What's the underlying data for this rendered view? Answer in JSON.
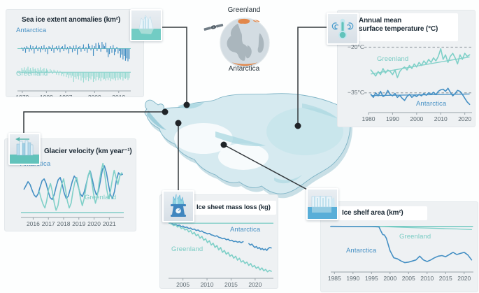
{
  "figure": {
    "globe": {
      "top_label": "Greenland",
      "bottom_label": "Antarctica"
    },
    "icons": {
      "sea_ice": "iceberg-icon",
      "temperature": "thermometer-wind-icon",
      "glacier_velocity": "glacier-flow-arrow-icon",
      "ice_sheet_mass": "ice-on-scale-icon",
      "ice_shelf": "ice-shelf-icon",
      "globe": "globe-icon",
      "satellite": "satellite-icon"
    },
    "colors": {
      "antarctica": "#4590c4",
      "greenland": "#7fd0c8",
      "greenland_soft": "#9adbd3",
      "ref_teal": "#6cc7bf",
      "title": "#1d2b36",
      "tick": "#5c6970",
      "axis": "#98a2a8",
      "dash": "#9aa3a9",
      "connector": "#33383c",
      "panel_bg": "#eef1f3",
      "map_fill": "#d6eaf0",
      "map_accent": "#a7d6e0",
      "globe_orange": "#e2874a"
    }
  },
  "chart_data": [
    {
      "key": "sea_ice",
      "type": "bar",
      "title": "Sea ice extent anomalies (km²)",
      "x_range": [
        1977,
        2024
      ],
      "y_range": [
        -2.4,
        2.0
      ],
      "x_ticks": [
        1979,
        1989,
        1997,
        2009,
        2019
      ],
      "series": [
        {
          "name": "Antarctica",
          "color": "antarctica",
          "style": "bars",
          "baseline": 1.1,
          "x_start": 1978.8,
          "x_step": 0.512,
          "values": [
            0.1,
            -0.2,
            0.15,
            -0.35,
            0.2,
            0.1,
            -0.25,
            0.3,
            -0.15,
            0.2,
            -0.4,
            0.1,
            0.25,
            -0.2,
            0.15,
            -0.3,
            0.2,
            -0.1,
            0.3,
            -0.25,
            0.1,
            -0.45,
            0.2,
            0.15,
            -0.2,
            0.3,
            -0.35,
            0.1,
            0.2,
            -0.15,
            0.25,
            -0.3,
            0.15,
            0.2,
            -0.2,
            0.35,
            -0.1,
            0.15,
            -0.4,
            0.2,
            0.1,
            -0.3,
            0.25,
            -0.2,
            0.3,
            -0.5,
            0.15,
            0.2,
            -0.25,
            0.1,
            0.35,
            -0.2,
            0.15,
            -0.35,
            0.4,
            0.2,
            -0.15,
            0.3,
            -0.6,
            0.2,
            0.45,
            -0.2,
            0.5,
            0.3,
            -0.25,
            0.55,
            0.35,
            0.2,
            0.5,
            -0.3,
            -0.7,
            -0.45,
            0.2,
            -0.35,
            0.3,
            -0.55,
            -0.25,
            0.15,
            -0.4,
            -0.2,
            -0.75,
            -0.5,
            -0.9,
            -0.6,
            -1.0,
            -0.8,
            -1.05,
            -0.85
          ]
        },
        {
          "name": "Greenland",
          "color": "greenland_soft",
          "style": "bars",
          "baseline": -0.85,
          "x_start": 1978.8,
          "x_step": 0.512,
          "values": [
            0.35,
            0.2,
            0.4,
            0.15,
            0.3,
            0.45,
            0.2,
            0.35,
            0.15,
            0.4,
            0.25,
            0.3,
            0.1,
            0.35,
            0.2,
            0.4,
            0.15,
            0.25,
            0.35,
            0.1,
            0.3,
            0.2,
            -0.1,
            0.25,
            0.15,
            -0.15,
            0.2,
            0.1,
            -0.2,
            0.15,
            -0.25,
            0.1,
            -0.3,
            -0.15,
            -0.35,
            -0.1,
            -0.4,
            -0.2,
            -0.5,
            -0.25,
            -0.45,
            -0.3,
            -0.8,
            -0.4,
            -0.55,
            -0.35,
            -0.6,
            -0.3,
            -0.7,
            -0.45,
            -0.85,
            -0.5,
            -0.65,
            -0.4,
            -0.75,
            -0.5,
            -0.6,
            -0.35,
            -0.8,
            -0.55,
            -0.7,
            -0.4,
            -0.65,
            -0.5,
            -0.75,
            -0.45,
            -0.6,
            -0.55,
            -0.7,
            -0.5,
            -0.65,
            -0.45,
            -0.75,
            -0.55,
            -0.6,
            -0.5,
            -0.7,
            -0.45,
            -0.65,
            -0.5,
            -0.6,
            -0.4,
            -0.7,
            -0.5,
            -0.55,
            -0.45,
            -0.65,
            -0.5
          ]
        }
      ]
    },
    {
      "key": "temperature",
      "type": "line",
      "title": "Annual mean\nsurface temperature (°C)",
      "x_range": [
        1980,
        2023
      ],
      "y_range": [
        -41.5,
        -18.5
      ],
      "x_ticks": [
        1980,
        1990,
        2000,
        2010,
        2020
      ],
      "refs": [
        {
          "y": -20,
          "label": "−20°C",
          "style": "dashed"
        },
        {
          "y": -35,
          "label": "−35°C",
          "style": "dashed"
        }
      ],
      "series": [
        {
          "name": "Greenland",
          "color": "greenland",
          "style": "line",
          "x_start": 1981,
          "x_step": 1,
          "values": [
            -27.5,
            -28.5,
            -29.5,
            -28,
            -29,
            -27,
            -28.5,
            -27.5,
            -28,
            -29,
            -27.5,
            -30,
            -28,
            -27,
            -26.5,
            -27.5,
            -26,
            -27,
            -25.5,
            -26.5,
            -25,
            -26,
            -24.5,
            -25.5,
            -24,
            -25,
            -23.5,
            -24.5,
            -23,
            -20.5,
            -24,
            -22.5,
            -25,
            -23,
            -22,
            -23.5,
            -25.5,
            -22.5,
            -24,
            -22,
            -23,
            -22.5
          ]
        },
        {
          "name": "",
          "color": "greenland",
          "style": "trend",
          "points": [
            [
              1981,
              -28.8
            ],
            [
              2022,
              -23.2
            ]
          ]
        },
        {
          "name": "Antarctica",
          "color": "antarctica",
          "style": "line",
          "x_start": 1981,
          "x_step": 1,
          "values": [
            -35.5,
            -36.5,
            -35,
            -36,
            -34.5,
            -36.2,
            -35.8,
            -34.2,
            -35.5,
            -36,
            -35.2,
            -36.5,
            -35.8,
            -36.8,
            -37.5,
            -36.2,
            -35.5,
            -36.5,
            -35.8,
            -36.2,
            -35.5,
            -36,
            -35.2,
            -35.8,
            -35,
            -35.5,
            -34.8,
            -35.6,
            -34.5,
            -34,
            -33.8,
            -34.5,
            -33.5,
            -34.8,
            -36,
            -35.2,
            -34.2,
            -34.5,
            -35.5,
            -36.8,
            -38,
            -38.8
          ]
        },
        {
          "name": "",
          "color": "antarctica",
          "style": "trend",
          "points": [
            [
              1981,
              -35.9
            ],
            [
              2022,
              -35.4
            ]
          ]
        }
      ]
    },
    {
      "key": "glacier_velocity",
      "type": "line",
      "title": "Glacier velocity (km year⁻¹)",
      "x_range": [
        2015.2,
        2021.95
      ],
      "y_range": [
        0,
        1.18
      ],
      "x_ticks": [
        2016,
        2017,
        2018,
        2019,
        2020,
        2021
      ],
      "refs": [
        {
          "y": 0,
          "style": "solid",
          "color": "ref_teal"
        }
      ],
      "series": [
        {
          "name": "Antarctica",
          "color": "antarctica",
          "style": "line",
          "x_start": 2015.4,
          "x_step": 0.132,
          "values": [
            0.5,
            0.58,
            0.66,
            0.6,
            0.48,
            0.38,
            0.33,
            0.4,
            0.55,
            0.68,
            0.72,
            0.62,
            0.45,
            0.32,
            0.28,
            0.38,
            0.56,
            0.7,
            0.75,
            0.6,
            0.42,
            0.3,
            0.35,
            0.5,
            0.66,
            0.78,
            0.72,
            0.55,
            0.4,
            0.34,
            0.45,
            0.62,
            0.8,
            0.88,
            0.7,
            0.5,
            0.38,
            0.45,
            0.68,
            0.92,
            1.0,
            0.85,
            0.6,
            0.38,
            0.3,
            0.45,
            0.7,
            0.85,
            0.8,
            0.82
          ]
        },
        {
          "name": "Greenland",
          "color": "greenland",
          "style": "line",
          "x_start": 2016.4,
          "x_step": 0.123,
          "values": [
            0.45,
            0.3,
            0.18,
            0.1,
            0.25,
            0.5,
            0.62,
            0.45,
            0.2,
            0.05,
            0.15,
            0.4,
            0.6,
            0.72,
            0.5,
            0.25,
            0.1,
            0.2,
            0.45,
            0.65,
            0.75,
            0.55,
            0.3,
            0.15,
            0.3,
            0.55,
            0.78,
            0.9,
            0.68,
            0.4,
            0.2,
            0.35,
            0.65,
            0.88,
            1.05,
            0.8,
            0.5,
            0.3,
            0.45,
            0.7,
            0.9,
            0.75,
            0.6,
            0.78,
            0.85
          ]
        }
      ]
    },
    {
      "key": "ice_sheet_mass",
      "type": "line",
      "title": "Ice sheet mass loss (kg)",
      "x_range": [
        2002,
        2023.8
      ],
      "y_range": [
        -1.12,
        0.06
      ],
      "x_ticks": [
        2005,
        2010,
        2015,
        2020
      ],
      "refs": [
        {
          "y": 0,
          "style": "solid",
          "color": "ref_teal"
        }
      ],
      "series": [
        {
          "name": "Antarctica",
          "color": "antarctica",
          "style": "line",
          "x_start": 2002.3,
          "x_step": 0.39,
          "values": [
            0,
            -0.01,
            -0.03,
            -0.02,
            -0.05,
            -0.04,
            -0.07,
            -0.06,
            -0.09,
            -0.08,
            -0.11,
            -0.1,
            -0.13,
            -0.12,
            -0.15,
            -0.14,
            -0.17,
            -0.16,
            -0.19,
            -0.2,
            -0.22,
            -0.21,
            -0.24,
            -0.25,
            -0.27,
            -0.26,
            -0.29,
            -0.3,
            -0.32,
            -0.31,
            -0.34,
            -0.33,
            -0.36,
            -0.35,
            -0.38,
            -0.37,
            -0.39,
            -0.38,
            -0.4,
            -0.38
          ]
        },
        {
          "name": "",
          "color": "antarctica",
          "style": "line",
          "x_start": 2018.7,
          "x_step": 0.31,
          "values": [
            -0.42,
            -0.45,
            -0.43,
            -0.47,
            -0.5,
            -0.48,
            -0.52,
            -0.5,
            -0.54,
            -0.52,
            -0.55,
            -0.53,
            -0.56,
            -0.52,
            -0.5,
            -0.51
          ]
        },
        {
          "name": "Greenland",
          "color": "greenland",
          "style": "line",
          "x_start": 2002.3,
          "x_step": 0.39,
          "values": [
            0,
            -0.02,
            -0.05,
            -0.03,
            -0.08,
            -0.06,
            -0.11,
            -0.09,
            -0.14,
            -0.12,
            -0.18,
            -0.15,
            -0.22,
            -0.19,
            -0.26,
            -0.23,
            -0.31,
            -0.27,
            -0.35,
            -0.32,
            -0.4,
            -0.36,
            -0.45,
            -0.41,
            -0.5,
            -0.46,
            -0.55,
            -0.5,
            -0.6,
            -0.56,
            -0.64,
            -0.6,
            -0.68,
            -0.65,
            -0.72,
            -0.68,
            -0.76,
            -0.72,
            -0.8,
            -0.77,
            -0.83,
            -0.8,
            -0.87,
            -0.83,
            -0.9,
            -0.87,
            -0.93,
            -0.9,
            -0.96,
            -0.92,
            -0.98,
            -0.95,
            -1.0,
            -0.97,
            -0.99
          ]
        }
      ]
    },
    {
      "key": "ice_shelf",
      "type": "line",
      "title": "Ice shelf area (km²)",
      "x_range": [
        1984,
        2022.5
      ],
      "y_range": [
        0.26,
        1.06
      ],
      "x_ticks": [
        1985,
        1990,
        1995,
        2000,
        2005,
        2010,
        2015,
        2020
      ],
      "series": [
        {
          "name": "",
          "color": "ref_teal",
          "style": "line",
          "w": 1.3,
          "points": [
            [
              1984,
              1.0
            ],
            [
              2022.3,
              1.0
            ]
          ]
        },
        {
          "name": "Greenland",
          "color": "greenland",
          "style": "line",
          "w": 1.3,
          "points": [
            [
              1984,
              1.0
            ],
            [
              1998,
              0.995
            ],
            [
              2002,
              0.985
            ],
            [
              2006,
              0.975
            ],
            [
              2010,
              0.968
            ],
            [
              2014,
              0.96
            ],
            [
              2018,
              0.952
            ],
            [
              2022,
              0.94
            ]
          ]
        },
        {
          "name": "Antarctica",
          "color": "antarctica",
          "style": "line",
          "points": [
            [
              1984,
              1.0
            ],
            [
              1995,
              0.995
            ],
            [
              1997,
              0.99
            ],
            [
              1997.5,
              0.92
            ],
            [
              1998,
              0.85
            ],
            [
              1998.5,
              0.84
            ],
            [
              1999,
              0.78
            ],
            [
              2000,
              0.55
            ],
            [
              2001,
              0.42
            ],
            [
              2002,
              0.4
            ],
            [
              2003,
              0.36
            ],
            [
              2004,
              0.33
            ],
            [
              2005,
              0.34
            ],
            [
              2006,
              0.36
            ],
            [
              2007,
              0.38
            ],
            [
              2008,
              0.45
            ],
            [
              2009,
              0.38
            ],
            [
              2010,
              0.35
            ],
            [
              2011,
              0.38
            ],
            [
              2012,
              0.42
            ],
            [
              2013,
              0.45
            ],
            [
              2014,
              0.46
            ],
            [
              2015,
              0.44
            ],
            [
              2016,
              0.48
            ],
            [
              2017,
              0.52
            ],
            [
              2018,
              0.48
            ],
            [
              2019,
              0.5
            ],
            [
              2020,
              0.52
            ],
            [
              2021,
              0.47
            ],
            [
              2022,
              0.38
            ]
          ]
        }
      ]
    }
  ]
}
